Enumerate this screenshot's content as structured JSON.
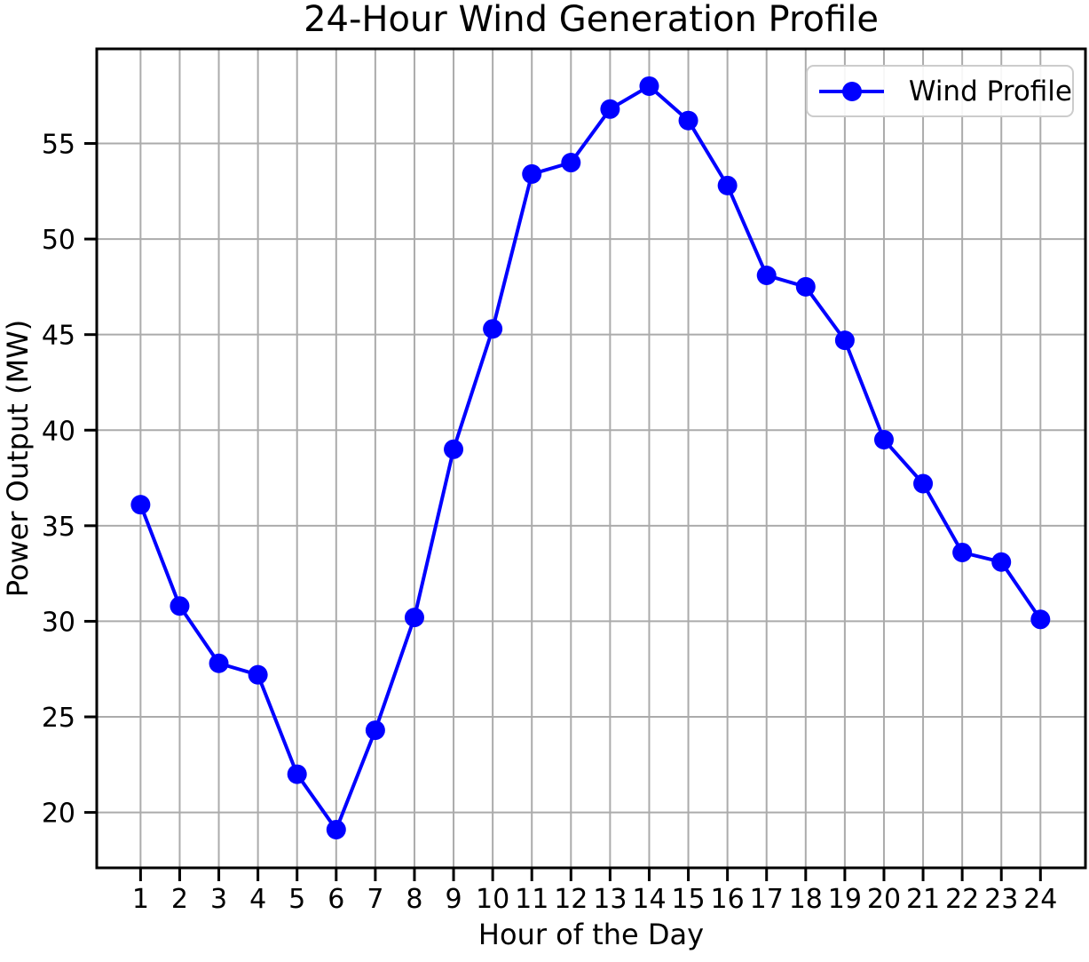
{
  "chart": {
    "title": "24-Hour Wind Generation Profile",
    "xlabel": "Hour of the Day",
    "ylabel": "Power Output (MW)",
    "legend": {
      "label": "Wind Profile"
    }
  },
  "chart_data": {
    "type": "line",
    "title": "24-Hour Wind Generation Profile",
    "xlabel": "Hour of the Day",
    "ylabel": "Power Output (MW)",
    "x": [
      1,
      2,
      3,
      4,
      5,
      6,
      7,
      8,
      9,
      10,
      11,
      12,
      13,
      14,
      15,
      16,
      17,
      18,
      19,
      20,
      21,
      22,
      23,
      24
    ],
    "series": [
      {
        "name": "Wind Profile",
        "values": [
          36.1,
          30.8,
          27.8,
          27.2,
          22.0,
          19.1,
          24.3,
          30.2,
          39.0,
          45.3,
          53.4,
          54.0,
          56.8,
          58.0,
          56.2,
          52.8,
          48.1,
          47.5,
          44.7,
          39.5,
          37.2,
          33.6,
          33.1,
          30.1
        ],
        "color": "#0000FF",
        "marker": "circle"
      }
    ],
    "x_ticks": [
      1,
      2,
      3,
      4,
      5,
      6,
      7,
      8,
      9,
      10,
      11,
      12,
      13,
      14,
      15,
      16,
      17,
      18,
      19,
      20,
      21,
      22,
      23,
      24
    ],
    "y_ticks": [
      20,
      25,
      30,
      35,
      40,
      45,
      50,
      55
    ],
    "xlim": [
      -0.12,
      25.15
    ],
    "ylim": [
      17.1,
      59.95
    ],
    "grid": true,
    "legend_position": "upper right",
    "colors": {
      "line": "#0000FF",
      "grid": "#ABABAB",
      "spine": "#000000",
      "text": "#000000",
      "legend_border": "#cccccc"
    }
  }
}
